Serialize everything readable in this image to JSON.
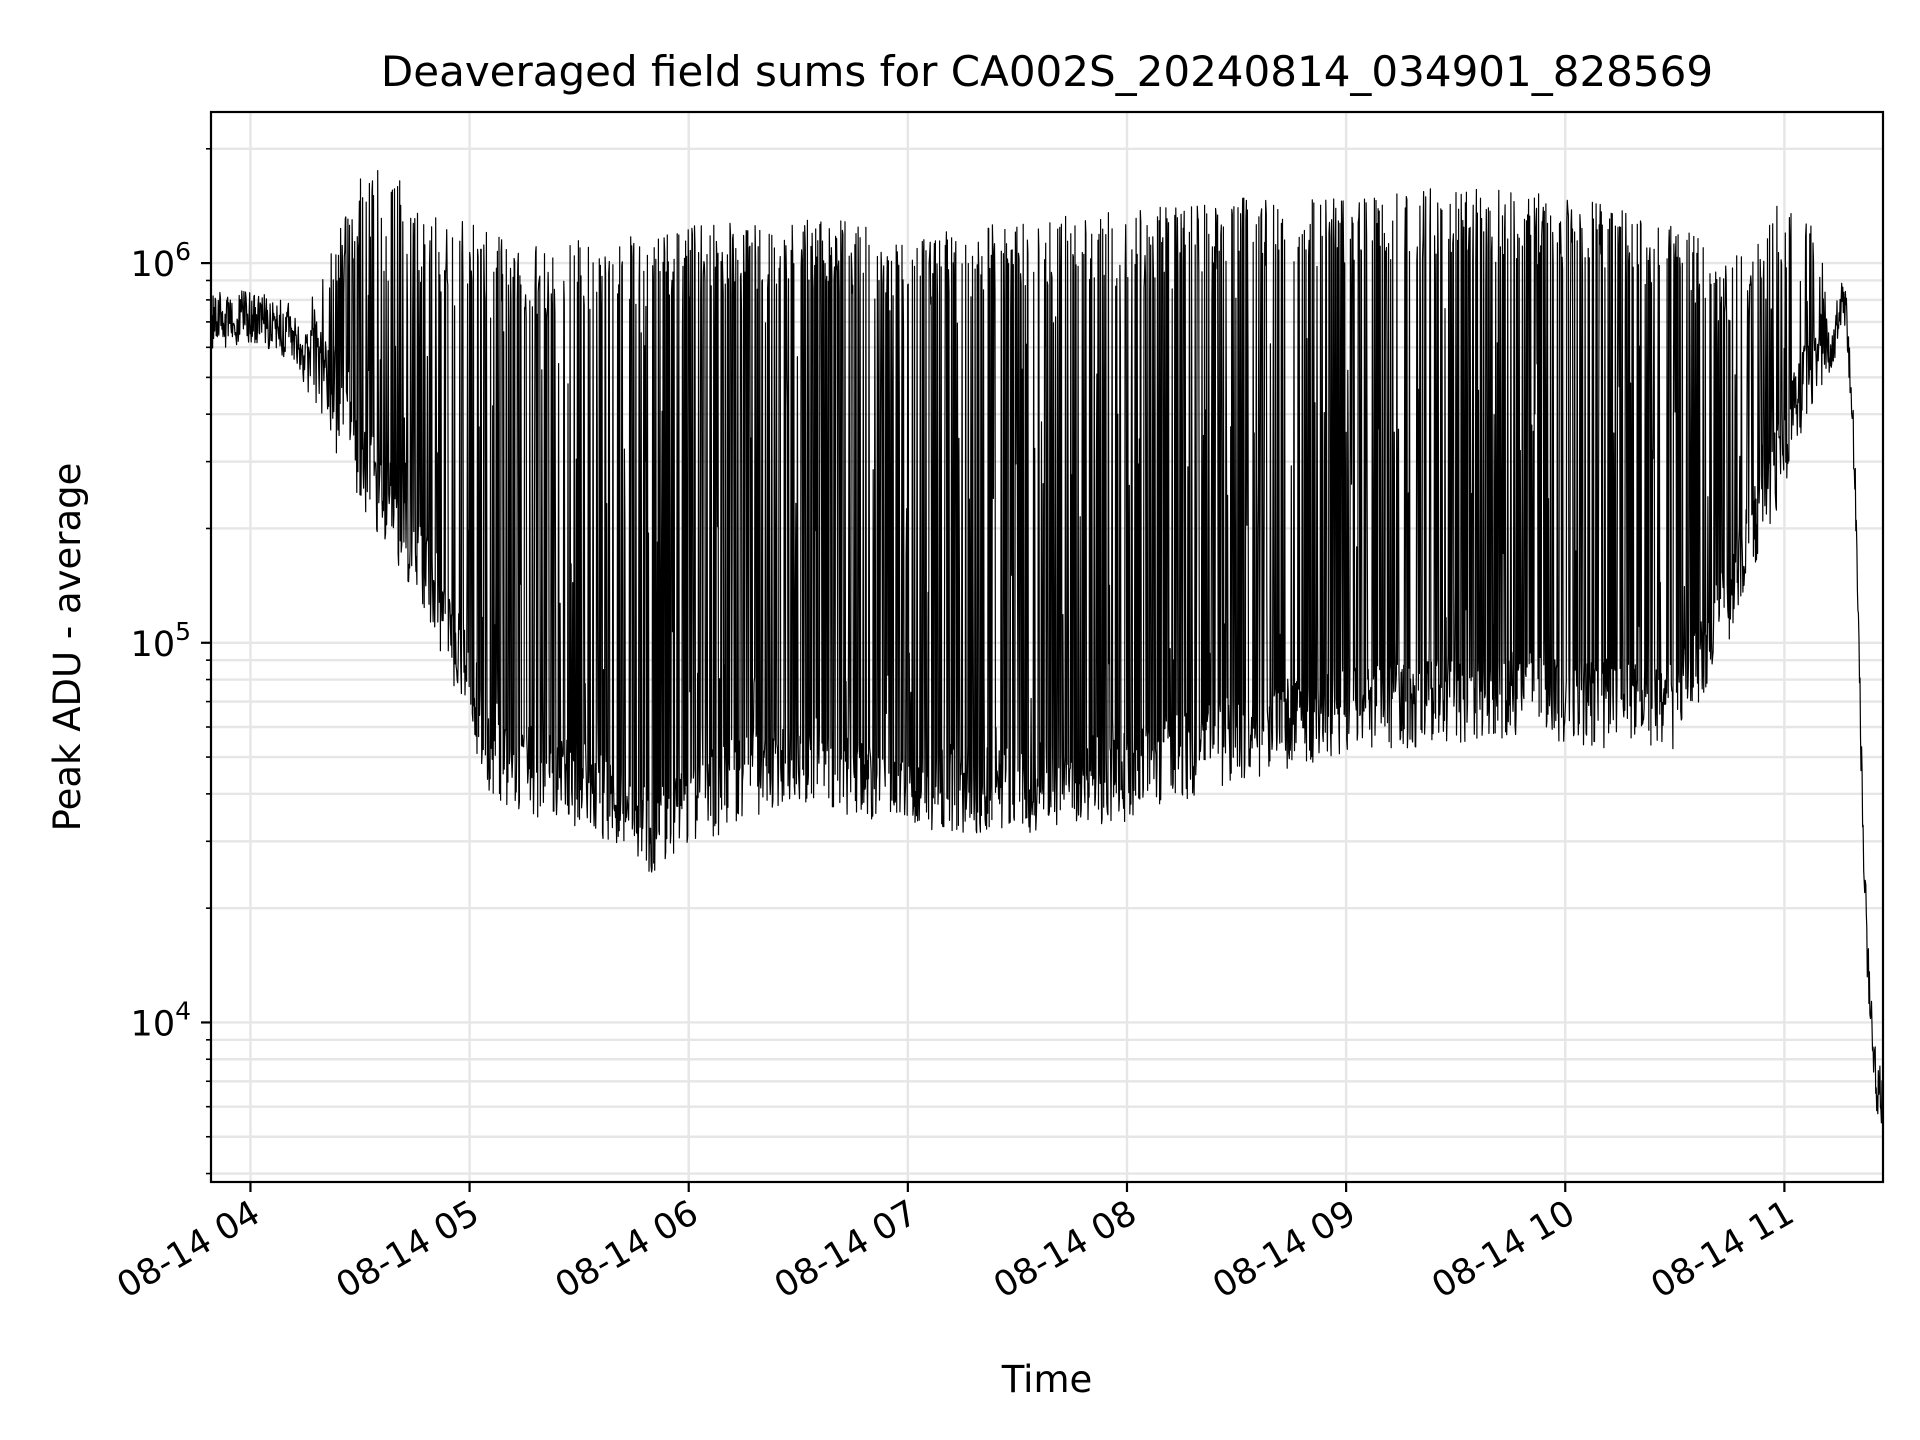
{
  "chart_data": {
    "type": "line",
    "title": "Deaveraged field sums for CA002S_20240814_034901_828569",
    "xlabel": "Time",
    "ylabel": "Peak ADU - average",
    "x_ticks": [
      "08-14 04",
      "08-14 05",
      "08-14 06",
      "08-14 07",
      "08-14 08",
      "08-14 09",
      "08-14 10",
      "08-14 11"
    ],
    "x_tick_hours": [
      4,
      5,
      6,
      7,
      8,
      9,
      10,
      11
    ],
    "xlim_hours": [
      3.82,
      11.45
    ],
    "yscale": "log",
    "ylim": [
      3800,
      2500000
    ],
    "y_ticks": [
      {
        "value": 10000,
        "base": "10",
        "exp": "4"
      },
      {
        "value": 100000,
        "base": "10",
        "exp": "5"
      },
      {
        "value": 1000000,
        "base": "10",
        "exp": "6"
      }
    ],
    "grid": true,
    "line_color": "#000000",
    "series": [
      {
        "x": [
          3.82,
          4.0,
          4.2,
          4.35,
          4.5,
          4.65,
          4.8,
          4.9,
          5.0,
          5.1,
          5.25,
          5.5,
          5.75,
          5.85,
          6.0,
          6.25,
          6.5,
          6.75,
          7.0,
          7.25,
          7.5,
          7.75,
          8.0,
          8.25,
          8.5,
          8.75,
          9.0,
          9.25,
          9.5,
          9.75,
          10.0,
          10.25,
          10.5,
          10.75,
          11.0,
          11.1,
          11.2,
          11.28,
          11.32,
          11.36,
          11.38,
          11.4,
          11.42,
          11.45
        ],
        "baseline": [
          700000,
          720000,
          650000,
          420000,
          270000,
          200000,
          140000,
          100000,
          70000,
          45000,
          42000,
          38000,
          33000,
          28000,
          33000,
          40000,
          45000,
          40000,
          38000,
          37000,
          37000,
          38000,
          40000,
          45000,
          50000,
          55000,
          60000,
          62000,
          64000,
          66000,
          63000,
          62000,
          60000,
          120000,
          300000,
          450000,
          600000,
          800000,
          300000,
          30000,
          14000,
          10000,
          7000,
          6000
        ],
        "peak_envelope": [
          850000,
          900000,
          700000,
          1000000,
          1700000,
          1800000,
          1300000,
          1350000,
          1300000,
          1200000,
          1100000,
          1150000,
          1200000,
          1200000,
          1250000,
          1300000,
          1300000,
          1300000,
          1200000,
          1250000,
          1300000,
          1350000,
          1400000,
          1450000,
          1500000,
          1500000,
          1550000,
          1580000,
          1600000,
          1550000,
          1500000,
          1400000,
          1300000,
          1000000,
          1500000,
          1600000,
          900000,
          850000,
          400000,
          30000,
          14000,
          10000,
          7000,
          6000
        ]
      }
    ]
  }
}
